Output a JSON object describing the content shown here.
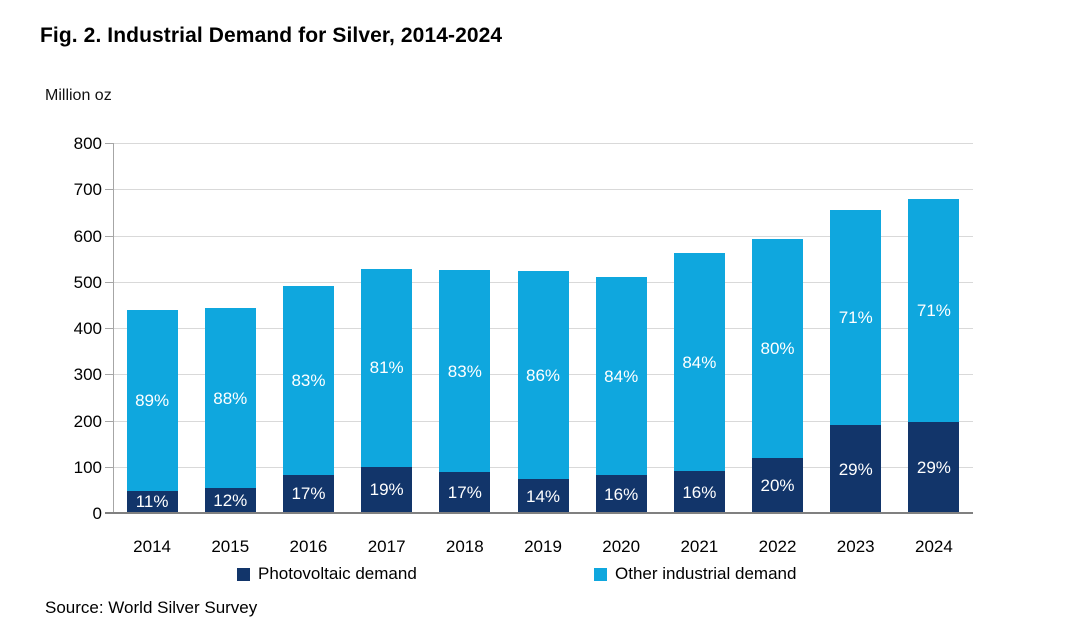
{
  "figure": {
    "title": "Fig. 2. Industrial Demand for Silver, 2014-2024",
    "unit_label": "Million oz",
    "source": "Source: World Silver Survey"
  },
  "legend": {
    "items": [
      {
        "label": "Photovoltaic demand",
        "color": "#12356A"
      },
      {
        "label": "Other industrial demand",
        "color": "#0FA7DE"
      }
    ]
  },
  "chart_data": {
    "type": "bar",
    "stacked": true,
    "title": "Fig. 2. Industrial Demand for Silver, 2014-2024",
    "ylabel": "Million oz",
    "xlabel": "",
    "ylim": [
      0,
      800
    ],
    "yticks": [
      0,
      100,
      200,
      300,
      400,
      500,
      600,
      700,
      800
    ],
    "grid": true,
    "legend_position": "bottom",
    "categories": [
      "2014",
      "2015",
      "2016",
      "2017",
      "2018",
      "2019",
      "2020",
      "2021",
      "2022",
      "2023",
      "2024"
    ],
    "series": [
      {
        "name": "Photovoltaic demand",
        "color": "#12356A",
        "values": [
          48,
          53,
          83,
          100,
          89,
          73,
          82,
          90,
          118,
          190,
          197
        ],
        "labels": [
          "11%",
          "12%",
          "17%",
          "19%",
          "17%",
          "14%",
          "16%",
          "16%",
          "20%",
          "29%",
          "29%"
        ]
      },
      {
        "name": "Other industrial demand",
        "color": "#0FA7DE",
        "values": [
          392,
          390,
          407,
          427,
          436,
          450,
          428,
          472,
          474,
          465,
          483
        ],
        "labels": [
          "89%",
          "88%",
          "83%",
          "81%",
          "83%",
          "86%",
          "84%",
          "84%",
          "80%",
          "71%",
          "71%"
        ]
      }
    ],
    "totals": [
      440,
      443,
      490,
      527,
      525,
      523,
      510,
      562,
      592,
      655,
      680
    ]
  }
}
